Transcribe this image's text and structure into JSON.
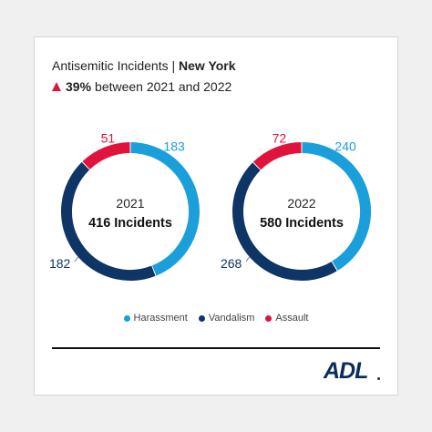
{
  "header": {
    "title_main": "Antisemitic Incidents | ",
    "title_location": "New York",
    "change_pct": "39%",
    "change_text": "between 2021 and 2022"
  },
  "colors": {
    "harassment": "#1a9fdb",
    "vandalism": "#0f3466",
    "assault": "#e0133c",
    "increase_arrow": "#e0133c"
  },
  "legend": [
    {
      "label": "Harassment",
      "color": "#1a9fdb"
    },
    {
      "label": "Vandalism",
      "color": "#0f3466"
    },
    {
      "label": "Assault",
      "color": "#e0133c"
    }
  ],
  "logo": {
    "text": "ADL"
  },
  "chart_data": [
    {
      "type": "pie",
      "year": "2021",
      "total_label": "416 Incidents",
      "categories": [
        "Harassment",
        "Vandalism",
        "Assault"
      ],
      "values": [
        183,
        182,
        51
      ]
    },
    {
      "type": "pie",
      "year": "2022",
      "total_label": "580 Incidents",
      "categories": [
        "Harassment",
        "Vandalism",
        "Assault"
      ],
      "values": [
        240,
        268,
        72
      ]
    }
  ]
}
